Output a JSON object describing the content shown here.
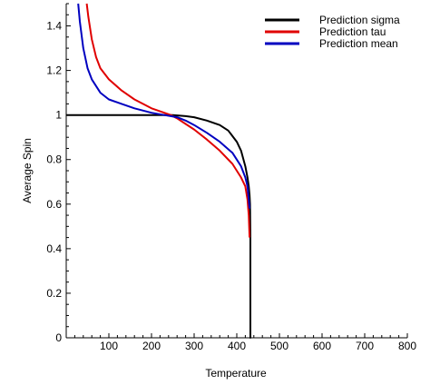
{
  "chart_data": {
    "type": "line",
    "title": "",
    "xlabel": "Temperature",
    "ylabel": "Average Spin",
    "xlim": [
      0,
      800
    ],
    "ylim": [
      0,
      1.5
    ],
    "x_ticks": [
      100,
      200,
      300,
      400,
      500,
      600,
      700,
      800
    ],
    "x_tick_labels": [
      "100",
      "200",
      "300",
      "400",
      "500",
      "600",
      "700",
      "800"
    ],
    "y_ticks": [
      0,
      0.2,
      0.4,
      0.6,
      0.8,
      1,
      1.2,
      1.4
    ],
    "y_tick_labels": [
      "0",
      "0.2",
      "0.4",
      "0.6",
      "0.8",
      "1",
      "1.2",
      "1.4"
    ],
    "grid": false,
    "legend_position": "top-right",
    "series": [
      {
        "name": "Prediction sigma",
        "color": "#000000",
        "x": [
          0,
          100,
          150,
          200,
          250,
          280,
          300,
          330,
          360,
          380,
          400,
          410,
          420,
          425,
          428,
          430,
          431,
          432,
          432,
          433
        ],
        "y": [
          1,
          1,
          1,
          1,
          1,
          0.995,
          0.99,
          0.975,
          0.955,
          0.93,
          0.88,
          0.84,
          0.77,
          0.72,
          0.68,
          0.64,
          0.6,
          0.45,
          0,
          0
        ]
      },
      {
        "name": "Prediction tau",
        "color": "#e00000",
        "x": [
          48,
          52,
          60,
          70,
          80,
          100,
          130,
          160,
          200,
          230,
          245,
          260,
          280,
          300,
          330,
          360,
          390,
          410,
          420,
          425,
          428,
          430
        ],
        "y": [
          1.5,
          1.44,
          1.34,
          1.26,
          1.21,
          1.16,
          1.11,
          1.07,
          1.03,
          1.01,
          1.0,
          0.985,
          0.96,
          0.935,
          0.89,
          0.84,
          0.78,
          0.72,
          0.68,
          0.62,
          0.55,
          0.45
        ]
      },
      {
        "name": "Prediction mean",
        "color": "#0000c0",
        "x": [
          28,
          32,
          40,
          50,
          60,
          80,
          100,
          130,
          160,
          200,
          230,
          245,
          260,
          280,
          300,
          330,
          360,
          390,
          410,
          420,
          425,
          428,
          430
        ],
        "y": [
          1.5,
          1.42,
          1.3,
          1.21,
          1.16,
          1.1,
          1.07,
          1.05,
          1.03,
          1.01,
          1.0,
          0.995,
          0.99,
          0.975,
          0.955,
          0.92,
          0.88,
          0.83,
          0.77,
          0.72,
          0.68,
          0.62,
          0.58
        ]
      }
    ]
  }
}
